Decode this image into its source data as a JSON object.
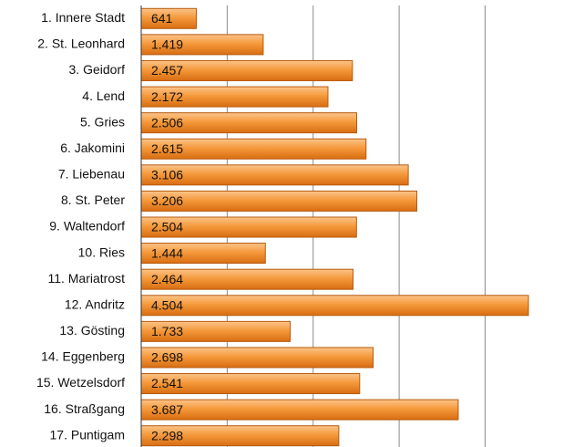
{
  "chart_data": {
    "type": "bar",
    "orientation": "horizontal",
    "categories": [
      "1. Innere Stadt",
      "2. St. Leonhard",
      "3. Geidorf",
      "4. Lend",
      "5. Gries",
      "6. Jakomini",
      "7. Liebenau",
      "8. St. Peter",
      "9. Waltendorf",
      "10. Ries",
      "11. Mariatrost",
      "12. Andritz",
      "13. Gösting",
      "14. Eggenberg",
      "15. Wetzelsdorf",
      "16. Straßgang",
      "17. Puntigam"
    ],
    "values": [
      641,
      1419,
      2457,
      2172,
      2506,
      2615,
      3106,
      3206,
      2504,
      1444,
      2464,
      4504,
      1733,
      2698,
      2541,
      3687,
      2298
    ],
    "value_labels": [
      "641",
      "1.419",
      "2.457",
      "2.172",
      "2.506",
      "2.615",
      "3.106",
      "3.206",
      "2.504",
      "1.444",
      "2.464",
      "4.504",
      "1.733",
      "2.698",
      "2.541",
      "3.687",
      "2.298"
    ],
    "color": "#f28c28",
    "xlim": [
      0,
      4800
    ],
    "xticks": [
      0,
      1000,
      2000,
      3000,
      4000
    ],
    "grid": true
  }
}
